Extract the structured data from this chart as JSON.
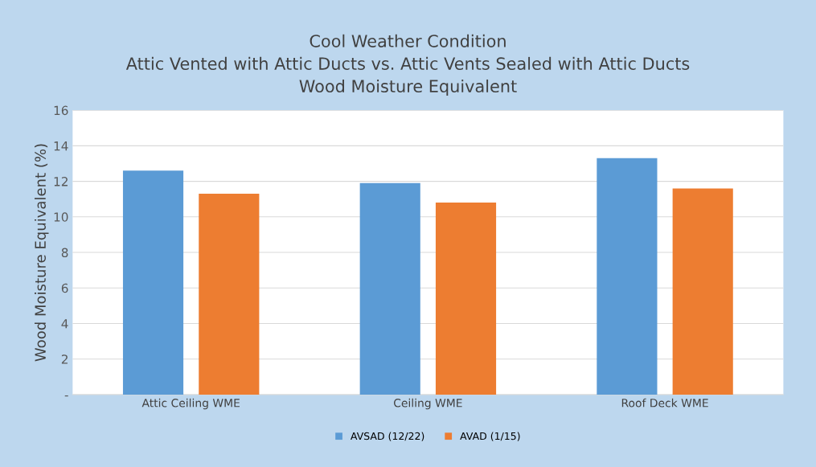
{
  "chart_data": {
    "type": "bar",
    "title": "Cool Weather Condition\nAttic Vented with Attic Ducts vs. Attic Vents Sealed with Attic Ducts\nWood Moisture Equivalent",
    "ylabel": "Wood Moisture Equivalent (%)",
    "categories": [
      "Attic Ceiling WME",
      "Ceiling WME",
      "Roof Deck WME"
    ],
    "series": [
      {
        "name": "AVSAD (12/22)",
        "color": "#5b9bd5",
        "values": [
          12.6,
          11.9,
          13.3
        ]
      },
      {
        "name": "AVAD (1/15)",
        "color": "#ed7d31",
        "values": [
          11.3,
          10.8,
          11.6
        ]
      }
    ],
    "ylim": [
      0,
      16
    ],
    "yticks": [
      {
        "value": 0,
        "label": "-"
      },
      2,
      4,
      6,
      8,
      10,
      12,
      14,
      16
    ],
    "grid": "y",
    "legend": "bottom"
  }
}
